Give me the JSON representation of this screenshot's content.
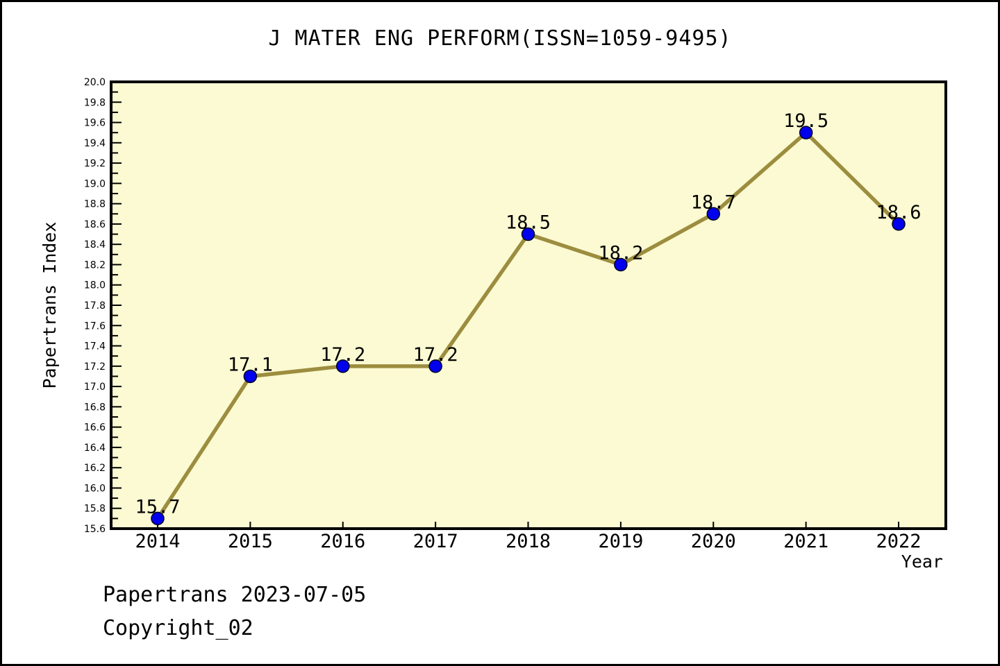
{
  "title": "J MATER ENG PERFORM(ISSN=1059-9495)",
  "footer": {
    "line1": "Papertrans 2023-07-05",
    "line2": "Copyright_02"
  },
  "chart_data": {
    "type": "line",
    "x": [
      2014,
      2015,
      2016,
      2017,
      2018,
      2019,
      2020,
      2021,
      2022
    ],
    "values": [
      15.7,
      17.1,
      17.2,
      17.2,
      18.5,
      18.2,
      18.7,
      19.5,
      18.6
    ],
    "point_labels": [
      "15.7",
      "17.1",
      "17.2",
      "17.2",
      "18.5",
      "18.2",
      "18.7",
      "19.5",
      "18.6"
    ],
    "title": "J MATER ENG PERFORM(ISSN=1059-9495)",
    "xlabel": "Year",
    "ylabel": "Papertrans Index",
    "ylim": [
      15.6,
      20.0
    ],
    "ytick_major_step": 0.2,
    "ytick_minor_step": 0.1,
    "grid": false,
    "legend": null,
    "colors": {
      "plot_bg": "#FBFAD2",
      "line": "#9C8D3F",
      "marker_fill": "#0000EE",
      "marker_edge": "#000022",
      "axis": "#000000",
      "text": "#000000"
    }
  }
}
